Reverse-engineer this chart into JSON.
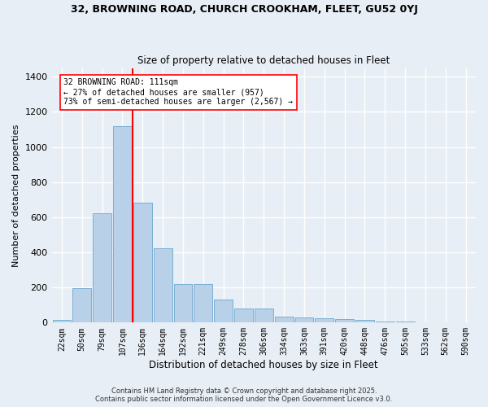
{
  "title_line1": "32, BROWNING ROAD, CHURCH CROOKHAM, FLEET, GU52 0YJ",
  "title_line2": "Size of property relative to detached houses in Fleet",
  "xlabel": "Distribution of detached houses by size in Fleet",
  "ylabel": "Number of detached properties",
  "categories": [
    "22sqm",
    "50sqm",
    "79sqm",
    "107sqm",
    "136sqm",
    "164sqm",
    "192sqm",
    "221sqm",
    "249sqm",
    "278sqm",
    "306sqm",
    "334sqm",
    "363sqm",
    "391sqm",
    "420sqm",
    "448sqm",
    "476sqm",
    "505sqm",
    "533sqm",
    "562sqm",
    "590sqm"
  ],
  "values": [
    15,
    195,
    625,
    1120,
    685,
    425,
    220,
    220,
    130,
    80,
    80,
    35,
    30,
    25,
    18,
    15,
    8,
    5,
    2,
    1,
    1
  ],
  "bar_color": "#b8d0e8",
  "bar_edge_color": "#7aafd4",
  "annotation_line1": "32 BROWNING ROAD: 111sqm",
  "annotation_line2": "← 27% of detached houses are smaller (957)",
  "annotation_line3": "73% of semi-detached houses are larger (2,567) →",
  "red_line_index": 3.5,
  "ylim": [
    0,
    1450
  ],
  "yticks": [
    0,
    200,
    400,
    600,
    800,
    1000,
    1200,
    1400
  ],
  "bg_color": "#e8eef5",
  "grid_color": "#ffffff",
  "fig_bg_color": "#e8eef5",
  "footer_line1": "Contains HM Land Registry data © Crown copyright and database right 2025.",
  "footer_line2": "Contains public sector information licensed under the Open Government Licence v3.0."
}
